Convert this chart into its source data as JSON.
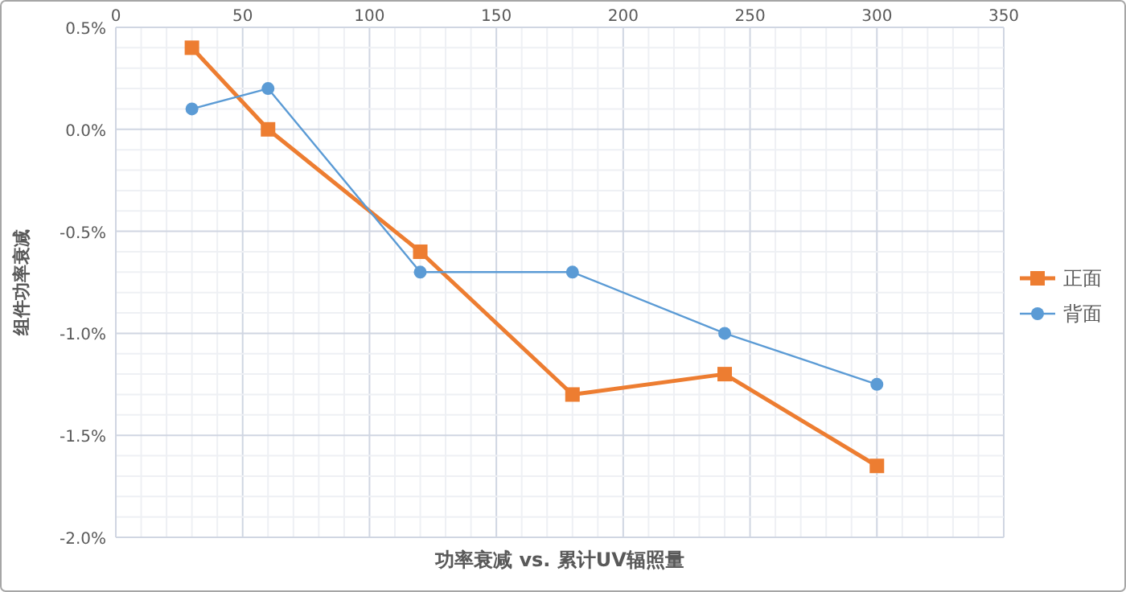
{
  "chart_data": {
    "type": "line",
    "xlabel": "功率衰减 vs. 累计UV辐照量",
    "ylabel": "组件功率衰减",
    "xlim": [
      0,
      350
    ],
    "ylim": [
      -2,
      0.5
    ],
    "xticks": [
      0,
      {
        "value": 10,
        "label": null
      },
      {
        "value": 20,
        "label": null
      },
      {
        "value": 30,
        "label": null
      },
      {
        "value": 40,
        "label": null
      },
      50,
      {
        "value": 60,
        "label": null
      },
      {
        "value": 70,
        "label": null
      },
      {
        "value": 80,
        "label": null
      },
      {
        "value": 90,
        "label": null
      },
      100,
      {
        "value": 110,
        "label": null
      },
      {
        "value": 120,
        "label": null
      },
      {
        "value": 130,
        "label": null
      },
      {
        "value": 140,
        "label": null
      },
      150,
      {
        "value": 160,
        "label": null
      },
      {
        "value": 170,
        "label": null
      },
      {
        "value": 180,
        "label": null
      },
      {
        "value": 190,
        "label": null
      },
      200,
      {
        "value": 210,
        "label": null
      },
      {
        "value": 220,
        "label": null
      },
      {
        "value": 230,
        "label": null
      },
      {
        "value": 240,
        "label": null
      },
      250,
      {
        "value": 260,
        "label": null
      },
      {
        "value": 270,
        "label": null
      },
      {
        "value": 280,
        "label": null
      },
      {
        "value": 290,
        "label": null
      },
      300,
      {
        "value": 310,
        "label": null
      },
      {
        "value": 320,
        "label": null
      },
      {
        "value": 330,
        "label": null
      },
      {
        "value": 340,
        "label": null
      },
      350
    ],
    "yticks": [
      {
        "value": -2,
        "label": "-2.0%"
      },
      {
        "value": -1.9,
        "label": null
      },
      {
        "value": -1.8,
        "label": null
      },
      {
        "value": -1.7,
        "label": null
      },
      {
        "value": -1.6,
        "label": null
      },
      {
        "value": -1.5,
        "label": "-1.5%"
      },
      {
        "value": -1.4,
        "label": null
      },
      {
        "value": -1.3,
        "label": null
      },
      {
        "value": -1.2,
        "label": null
      },
      {
        "value": -1.1,
        "label": null
      },
      {
        "value": -1,
        "label": "-1.0%"
      },
      {
        "value": -0.9,
        "label": null
      },
      {
        "value": -0.8,
        "label": null
      },
      {
        "value": -0.7,
        "label": null
      },
      {
        "value": -0.6,
        "label": null
      },
      {
        "value": -0.5,
        "label": "-0.5%"
      },
      {
        "value": -0.4,
        "label": null
      },
      {
        "value": -0.3,
        "label": null
      },
      {
        "value": -0.2,
        "label": null
      },
      {
        "value": -0.1,
        "label": null
      },
      {
        "value": 0,
        "label": "0.0%"
      },
      {
        "value": 0.1,
        "label": null
      },
      {
        "value": 0.2,
        "label": null
      },
      {
        "value": 0.3,
        "label": null
      },
      {
        "value": 0.4,
        "label": null
      },
      {
        "value": 0.5,
        "label": "0.5%"
      }
    ],
    "grid": true,
    "legend": "right",
    "series": [
      {
        "name": "正面",
        "color": "#ed7d31",
        "marker": "square",
        "x": [
          30,
          60,
          120,
          180,
          240,
          300
        ],
        "values": [
          0.4,
          0,
          -0.6,
          -1.3,
          -1.2,
          -1.65
        ]
      },
      {
        "name": "背面",
        "color": "#5b9bd5",
        "marker": "circle",
        "x": [
          30,
          60,
          120,
          180,
          240,
          300
        ],
        "values": [
          0.1,
          0.2,
          -0.7,
          -0.7,
          -1,
          -1.25
        ]
      }
    ]
  }
}
